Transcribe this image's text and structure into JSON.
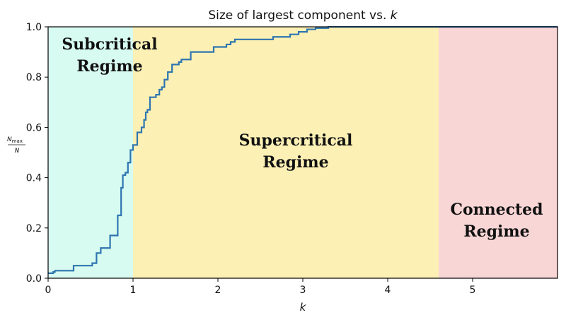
{
  "chart_data": {
    "type": "line",
    "title": "Size of largest component vs. ",
    "title_var": "k",
    "xlabel": "k",
    "ylabel": {
      "numerator": "N",
      "numerator_sub": "max",
      "denominator": "N"
    },
    "xlim": [
      0,
      6
    ],
    "ylim": [
      0,
      1.0
    ],
    "xticks": [
      0,
      1,
      2,
      3,
      4,
      5
    ],
    "xtick_labels": [
      "0",
      "1",
      "2",
      "3",
      "4",
      "5"
    ],
    "yticks": [
      0.0,
      0.2,
      0.4,
      0.6,
      0.8,
      1.0
    ],
    "ytick_labels": [
      "0.0",
      "0.2",
      "0.4",
      "0.6",
      "0.8",
      "1.0"
    ],
    "grid": false,
    "regions": [
      {
        "label_lines": [
          "Subcritical",
          "Regime"
        ],
        "x_start": 0,
        "x_end": 1.0,
        "color": "#d7fbf0"
      },
      {
        "label_lines": [
          "Supercritical",
          "Regime"
        ],
        "x_start": 1.0,
        "x_end": 4.6,
        "color": "#fdf0b5"
      },
      {
        "label_lines": [
          "Connected",
          "Regime"
        ],
        "x_start": 4.6,
        "x_end": 6.0,
        "color": "#f9d6d6"
      }
    ],
    "series": [
      {
        "color": "#2e75b0",
        "x": [
          0.0,
          0.06,
          0.06,
          0.08,
          0.08,
          0.3,
          0.3,
          0.52,
          0.52,
          0.57,
          0.57,
          0.62,
          0.62,
          0.65,
          0.65,
          0.73,
          0.73,
          0.75,
          0.75,
          0.82,
          0.82,
          0.86,
          0.86,
          0.88,
          0.88,
          0.91,
          0.91,
          0.94,
          0.94,
          0.97,
          0.97,
          1.0,
          1.0,
          1.05,
          1.05,
          1.1,
          1.1,
          1.13,
          1.13,
          1.15,
          1.15,
          1.17,
          1.17,
          1.2,
          1.2,
          1.27,
          1.27,
          1.31,
          1.31,
          1.34,
          1.34,
          1.37,
          1.37,
          1.41,
          1.41,
          1.46,
          1.46,
          1.54,
          1.54,
          1.57,
          1.57,
          1.63,
          1.63,
          1.68,
          1.68,
          1.95,
          1.95,
          2.1,
          2.1,
          2.15,
          2.15,
          2.2,
          2.2,
          2.65,
          2.65,
          2.85,
          2.85,
          2.95,
          2.95,
          3.05,
          3.05,
          3.15,
          3.15,
          3.3,
          3.3,
          6.0
        ],
        "y": [
          0.02,
          0.02,
          0.025,
          0.025,
          0.03,
          0.03,
          0.05,
          0.05,
          0.06,
          0.06,
          0.1,
          0.1,
          0.12,
          0.12,
          0.12,
          0.12,
          0.17,
          0.17,
          0.17,
          0.17,
          0.25,
          0.25,
          0.36,
          0.36,
          0.41,
          0.41,
          0.42,
          0.42,
          0.46,
          0.46,
          0.51,
          0.51,
          0.53,
          0.53,
          0.58,
          0.58,
          0.6,
          0.6,
          0.63,
          0.63,
          0.66,
          0.66,
          0.67,
          0.67,
          0.72,
          0.72,
          0.73,
          0.73,
          0.75,
          0.75,
          0.76,
          0.76,
          0.79,
          0.79,
          0.82,
          0.82,
          0.85,
          0.85,
          0.86,
          0.86,
          0.87,
          0.87,
          0.87,
          0.87,
          0.9,
          0.9,
          0.92,
          0.92,
          0.93,
          0.93,
          0.94,
          0.94,
          0.95,
          0.95,
          0.96,
          0.96,
          0.97,
          0.97,
          0.98,
          0.98,
          0.99,
          0.99,
          0.995,
          0.995,
          1.0,
          1.0
        ]
      }
    ]
  }
}
